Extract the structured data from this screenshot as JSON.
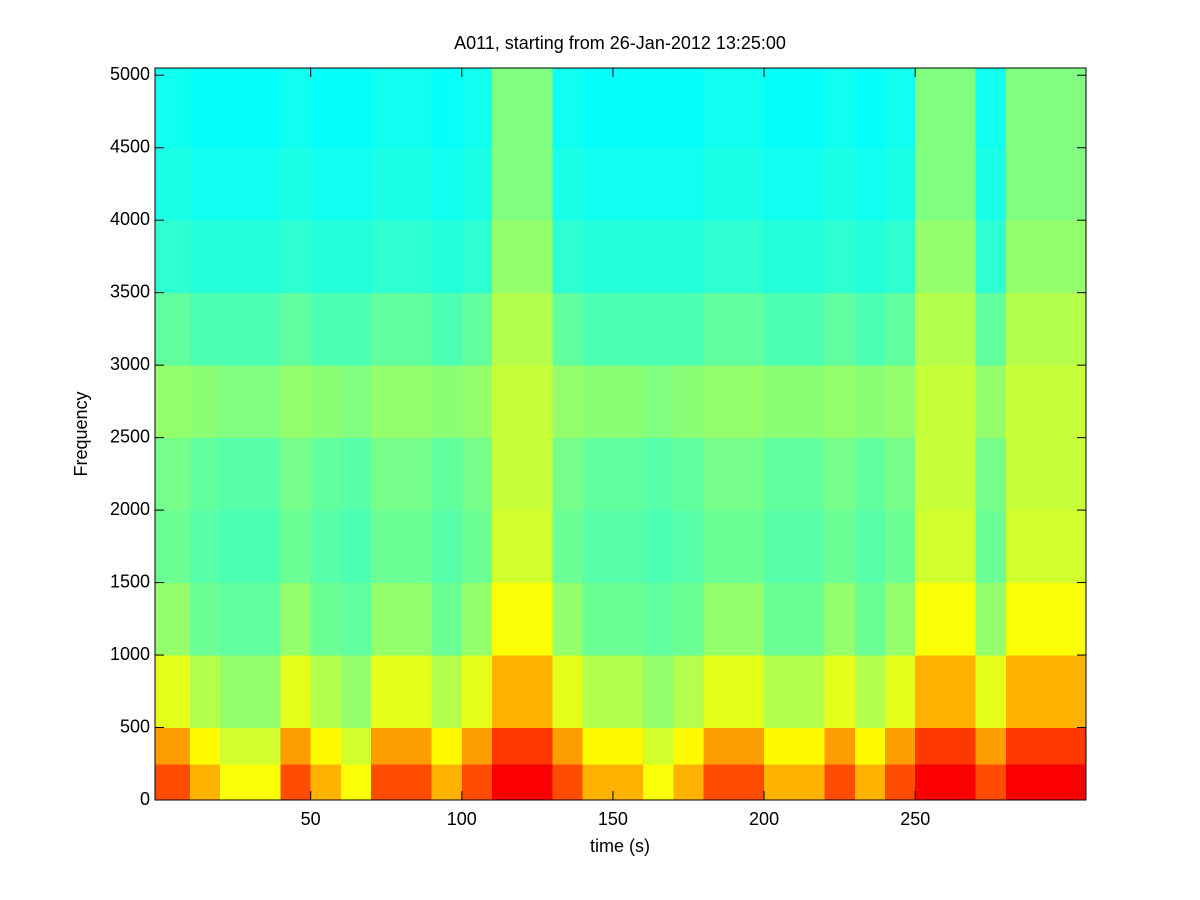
{
  "chart_data": {
    "type": "heatmap",
    "title": "A011, starting from 26-Jan-2012 13:25:00",
    "xlabel": "time (s)",
    "ylabel": "Frequency",
    "colormap": "jet",
    "zlim": [
      0,
      1
    ],
    "xlim": [
      -1.5,
      306.5
    ],
    "ylim": [
      0,
      5050
    ],
    "xticks": [
      50,
      100,
      150,
      200,
      250
    ],
    "yticks": [
      0,
      500,
      1000,
      1500,
      2000,
      2500,
      3000,
      3500,
      4000,
      4500,
      5000
    ],
    "xbins": [
      -1.5,
      10,
      20,
      30,
      40,
      50,
      60,
      70,
      80,
      90,
      100,
      110,
      120,
      130,
      140,
      150,
      160,
      170,
      180,
      190,
      200,
      210,
      220,
      230,
      240,
      250,
      260,
      270,
      280,
      290,
      300,
      306.5
    ],
    "ybins": [
      0,
      250,
      500,
      1000,
      1500,
      2000,
      2500,
      3000,
      3500,
      4000,
      4500,
      5050
    ],
    "z": [
      [
        0.8,
        0.7,
        0.62,
        0.62,
        0.8,
        0.7,
        0.62,
        0.8,
        0.8,
        0.7,
        0.8,
        0.88,
        0.88,
        0.8,
        0.7,
        0.7,
        0.62,
        0.7,
        0.8,
        0.8,
        0.7,
        0.7,
        0.8,
        0.7,
        0.8,
        0.88,
        0.88,
        0.8,
        0.88,
        0.88,
        0.88
      ],
      [
        0.72,
        0.63,
        0.58,
        0.58,
        0.72,
        0.63,
        0.58,
        0.72,
        0.72,
        0.63,
        0.72,
        0.82,
        0.82,
        0.72,
        0.63,
        0.63,
        0.58,
        0.63,
        0.72,
        0.72,
        0.63,
        0.63,
        0.72,
        0.63,
        0.72,
        0.82,
        0.82,
        0.72,
        0.82,
        0.82,
        0.82
      ],
      [
        0.6,
        0.55,
        0.52,
        0.52,
        0.6,
        0.55,
        0.52,
        0.6,
        0.6,
        0.55,
        0.6,
        0.7,
        0.7,
        0.6,
        0.55,
        0.55,
        0.52,
        0.55,
        0.6,
        0.6,
        0.55,
        0.55,
        0.6,
        0.55,
        0.6,
        0.7,
        0.7,
        0.6,
        0.7,
        0.7,
        0.7
      ],
      [
        0.52,
        0.48,
        0.47,
        0.47,
        0.52,
        0.48,
        0.47,
        0.52,
        0.52,
        0.48,
        0.52,
        0.62,
        0.62,
        0.52,
        0.48,
        0.48,
        0.47,
        0.48,
        0.52,
        0.52,
        0.48,
        0.48,
        0.52,
        0.48,
        0.52,
        0.62,
        0.62,
        0.52,
        0.62,
        0.62,
        0.62
      ],
      [
        0.48,
        0.46,
        0.45,
        0.45,
        0.48,
        0.46,
        0.45,
        0.48,
        0.48,
        0.46,
        0.48,
        0.58,
        0.58,
        0.48,
        0.46,
        0.46,
        0.45,
        0.46,
        0.48,
        0.48,
        0.46,
        0.46,
        0.48,
        0.46,
        0.48,
        0.58,
        0.58,
        0.48,
        0.58,
        0.58,
        0.58
      ],
      [
        0.49,
        0.47,
        0.46,
        0.46,
        0.49,
        0.47,
        0.46,
        0.49,
        0.49,
        0.47,
        0.49,
        0.57,
        0.57,
        0.49,
        0.47,
        0.47,
        0.46,
        0.47,
        0.49,
        0.49,
        0.47,
        0.47,
        0.49,
        0.47,
        0.49,
        0.57,
        0.57,
        0.49,
        0.57,
        0.57,
        0.57
      ],
      [
        0.52,
        0.51,
        0.5,
        0.5,
        0.52,
        0.51,
        0.5,
        0.52,
        0.52,
        0.51,
        0.52,
        0.57,
        0.57,
        0.52,
        0.51,
        0.51,
        0.5,
        0.51,
        0.52,
        0.52,
        0.51,
        0.51,
        0.52,
        0.51,
        0.52,
        0.57,
        0.57,
        0.52,
        0.57,
        0.57,
        0.57
      ],
      [
        0.47,
        0.45,
        0.45,
        0.45,
        0.47,
        0.45,
        0.45,
        0.47,
        0.47,
        0.45,
        0.47,
        0.55,
        0.55,
        0.47,
        0.45,
        0.45,
        0.45,
        0.45,
        0.47,
        0.47,
        0.45,
        0.45,
        0.47,
        0.45,
        0.47,
        0.55,
        0.55,
        0.47,
        0.55,
        0.55,
        0.55
      ],
      [
        0.42,
        0.41,
        0.41,
        0.41,
        0.42,
        0.41,
        0.41,
        0.42,
        0.42,
        0.41,
        0.42,
        0.52,
        0.52,
        0.42,
        0.41,
        0.41,
        0.41,
        0.41,
        0.42,
        0.42,
        0.41,
        0.41,
        0.42,
        0.41,
        0.42,
        0.52,
        0.52,
        0.42,
        0.52,
        0.52,
        0.52
      ],
      [
        0.4,
        0.39,
        0.39,
        0.39,
        0.4,
        0.39,
        0.39,
        0.4,
        0.4,
        0.39,
        0.4,
        0.5,
        0.5,
        0.4,
        0.39,
        0.39,
        0.39,
        0.39,
        0.4,
        0.4,
        0.39,
        0.39,
        0.4,
        0.39,
        0.4,
        0.5,
        0.5,
        0.4,
        0.5,
        0.5,
        0.5
      ],
      [
        0.39,
        0.38,
        0.38,
        0.38,
        0.39,
        0.38,
        0.38,
        0.39,
        0.39,
        0.38,
        0.39,
        0.5,
        0.5,
        0.39,
        0.38,
        0.38,
        0.38,
        0.38,
        0.39,
        0.39,
        0.38,
        0.38,
        0.39,
        0.38,
        0.39,
        0.5,
        0.5,
        0.39,
        0.5,
        0.5,
        0.5
      ]
    ]
  }
}
